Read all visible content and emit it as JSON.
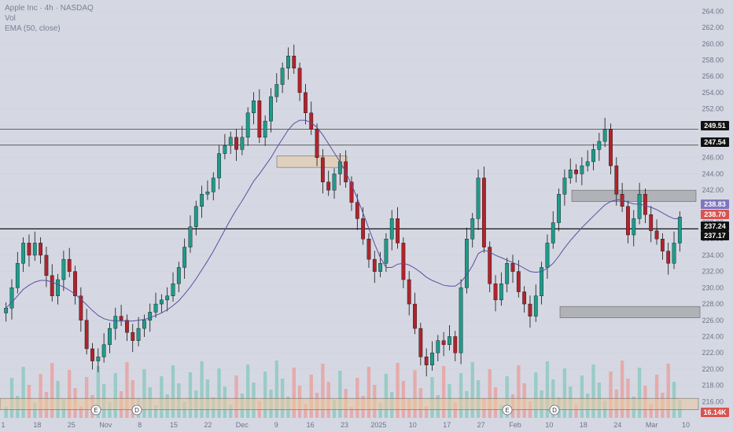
{
  "header": {
    "symbol_line": "Apple Inc · 4h · NASDAQ",
    "vol_label": "Vol",
    "ema_label": "EMA (50, close)"
  },
  "colors": {
    "background": "#d5d8e3",
    "up": "#1f9b8a",
    "down": "#b0242c",
    "wick": "#111111",
    "ema": "#5a4fa0",
    "level_line": "#3a3a3a",
    "price_line": "#111111",
    "zone_gray": "#9a9a9a",
    "zone_beige": "#e8c9a4",
    "vol_up": "#8fc9c0",
    "vol_down": "#e8a3a0"
  },
  "chart_data": {
    "type": "candlestick",
    "title": "Apple Inc · 4h · NASDAQ",
    "ylim": [
      214,
      265
    ],
    "y_ticks": [
      216,
      218,
      220,
      222,
      224,
      226,
      228,
      230,
      232,
      234,
      236,
      238,
      240,
      242,
      244,
      246,
      248,
      250,
      252,
      254,
      256,
      258,
      260,
      262,
      264
    ],
    "x_ticks": [
      "1",
      "18",
      "25",
      "Nov",
      "8",
      "15",
      "22",
      "Dec",
      "9",
      "16",
      "23",
      "2025",
      "10",
      "17",
      "27",
      "Feb",
      "10",
      "18",
      "24",
      "Mar",
      "10"
    ],
    "close_series": [
      227.5,
      230.0,
      233.0,
      235.5,
      234.0,
      235.5,
      234.0,
      231.5,
      229.0,
      231.0,
      233.5,
      232.0,
      229.0,
      226.0,
      222.5,
      221.0,
      221.5,
      223.0,
      225.0,
      226.5,
      226.0,
      224.5,
      223.5,
      225.0,
      226.0,
      227.0,
      228.0,
      228.5,
      229.0,
      230.5,
      232.5,
      235.0,
      237.5,
      240.0,
      241.5,
      241.8,
      243.5,
      246.5,
      247.5,
      248.5,
      247.0,
      248.5,
      251.5,
      253.0,
      248.5,
      250.5,
      253.5,
      255.0,
      257.0,
      258.5,
      257.0,
      254.0,
      251.5,
      249.5,
      246.0,
      243.0,
      242.0,
      244.0,
      245.5,
      243.0,
      240.5,
      238.5,
      236.0,
      233.5,
      232.0,
      233.0,
      236.0,
      238.5,
      235.5,
      231.0,
      228.0,
      225.0,
      221.5,
      220.5,
      222.0,
      223.5,
      223.0,
      224.0,
      222.0,
      230.0,
      236.0,
      238.5,
      243.5,
      235.0,
      230.5,
      228.5,
      230.5,
      233.0,
      232.0,
      229.5,
      228.0,
      226.5,
      229.0,
      232.5,
      235.5,
      238.0,
      241.5,
      243.5,
      244.5,
      244.0,
      245.0,
      245.5,
      247.0,
      248.0,
      249.5,
      245.0,
      241.5,
      240.0,
      236.5,
      238.5,
      241.5,
      239.0,
      237.0,
      236.0,
      234.5,
      233.0,
      235.5,
      238.7
    ],
    "ema_50": [
      227.5,
      228.2,
      229.0,
      229.8,
      230.3,
      230.7,
      230.9,
      230.9,
      230.7,
      230.4,
      230.1,
      229.7,
      229.2,
      228.6,
      227.9,
      227.2,
      226.6,
      226.2,
      226.0,
      225.9,
      225.9,
      225.9,
      225.9,
      226.0,
      226.1,
      226.3,
      226.6,
      226.9,
      227.3,
      227.8,
      228.4,
      229.2,
      230.1,
      231.1,
      232.2,
      233.3,
      234.5,
      235.8,
      237.1,
      238.4,
      239.6,
      240.7,
      241.9,
      243.1,
      244.0,
      245.0,
      246.0,
      247.2,
      248.3,
      249.4,
      250.2,
      250.6,
      250.6,
      250.3,
      249.7,
      248.8,
      247.7,
      246.6,
      245.5,
      244.2,
      242.7,
      241.0,
      239.2,
      237.3,
      235.4,
      233.7,
      232.5,
      232.5,
      232.9,
      233.0,
      232.8,
      232.4,
      231.9,
      231.3,
      230.9,
      230.6,
      230.3,
      230.2,
      230.2,
      230.7,
      231.6,
      232.7,
      234.2,
      234.6,
      234.4,
      234.0,
      233.7,
      233.4,
      233.1,
      232.8,
      232.4,
      232.0,
      231.9,
      232.0,
      232.4,
      233.0,
      233.9,
      234.9,
      235.8,
      236.6,
      237.4,
      238.1,
      238.8,
      239.5,
      240.2,
      240.6,
      240.8,
      240.8,
      240.5,
      240.3,
      240.3,
      240.1,
      239.9,
      239.6,
      239.2,
      238.8,
      238.5,
      238.5
    ],
    "horizontal_levels": [
      249.51,
      247.54,
      237.24
    ],
    "price_labels": [
      {
        "label": "249.51",
        "kind": "level"
      },
      {
        "label": "247.54",
        "kind": "level"
      },
      {
        "label": "238.83",
        "kind": "high"
      },
      {
        "label": "238.70",
        "kind": "last"
      },
      {
        "label": "237.24",
        "kind": "level"
      },
      {
        "label": "237.17",
        "kind": "level"
      },
      {
        "label": "16.14K",
        "kind": "volume"
      }
    ],
    "zones": [
      {
        "y_low": 244.8,
        "y_high": 246.2,
        "color": "beige"
      },
      {
        "y_low": 240.6,
        "y_high": 242.0,
        "color": "gray"
      },
      {
        "y_low": 226.3,
        "y_high": 227.7,
        "color": "gray"
      },
      {
        "y_low": 215.0,
        "y_high": 216.4,
        "color": "beige"
      }
    ],
    "event_markers": [
      "E",
      "D",
      "E",
      "D"
    ]
  }
}
